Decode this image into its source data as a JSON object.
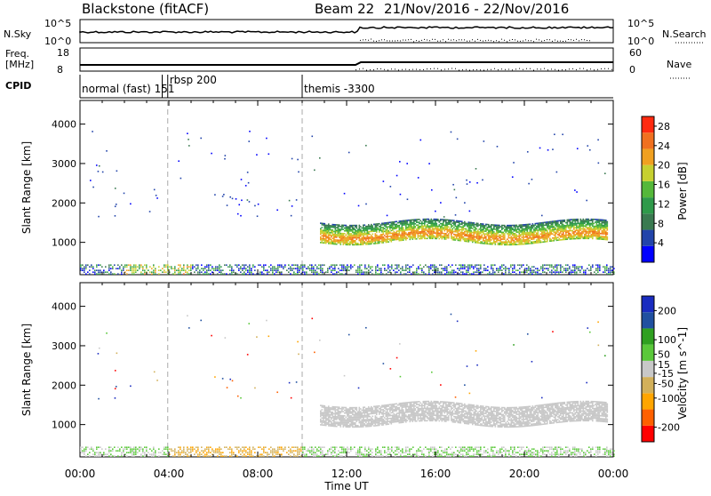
{
  "header": {
    "station": "Blackstone (fitACF)",
    "beam": "Beam 22",
    "dates": "21/Nov/2016 - 22/Nov/2016"
  },
  "top_panels": {
    "nsky_label": "N.Sky",
    "nsky_ticks": [
      "10^5",
      "10^0"
    ],
    "nsearch_label": "N.Search",
    "nsearch_ticks": [
      "10^5",
      "10^0"
    ],
    "freq_label": "Freq.",
    "freq_unit": "[MHz]",
    "freq_ticks": [
      "18",
      "8"
    ],
    "nave_label": "Nave",
    "nave_ticks": [
      "60",
      "0"
    ],
    "cpid_label": "CPID"
  },
  "cpid_segments": [
    {
      "name": "normal (fast)",
      "code": "151",
      "start_h": 0.0
    },
    {
      "name": "rbsp",
      "code": "200",
      "start_h": 3.95
    },
    {
      "name": "themis",
      "code": "-3300",
      "start_h": 10.0
    }
  ],
  "chart_data": [
    {
      "type": "heatmap",
      "name": "power",
      "ylabel": "Slant Range [km]",
      "x_range": [
        0,
        24
      ],
      "ylim": [
        180,
        4600
      ],
      "yticks": [
        1000,
        2000,
        3000,
        4000
      ],
      "colorbar": {
        "label": "Power [dB]",
        "ticks": [
          4,
          8,
          12,
          16,
          20,
          24,
          28
        ],
        "range": [
          0,
          30
        ]
      },
      "ground_band_km": [
        180,
        450
      ],
      "main_echo": {
        "start_h": 10.8,
        "end_h": 23.7,
        "core_km": 1150,
        "top_km": 1500,
        "peak_db": 26
      }
    },
    {
      "type": "heatmap",
      "name": "velocity",
      "ylabel": "Slant Range [km]",
      "xlabel": "Time UT",
      "x_range": [
        0,
        24
      ],
      "xticks": [
        "00:00",
        "04:00",
        "08:00",
        "12:00",
        "16:00",
        "20:00",
        "00:00"
      ],
      "ylim": [
        180,
        4600
      ],
      "yticks": [
        1000,
        2000,
        3000,
        4000
      ],
      "colorbar": {
        "label": "Velocity [m s^-1]",
        "ticks": [
          200,
          100,
          50,
          15,
          -15,
          -50,
          -100,
          -200
        ],
        "range": [
          -250,
          250
        ]
      }
    }
  ]
}
